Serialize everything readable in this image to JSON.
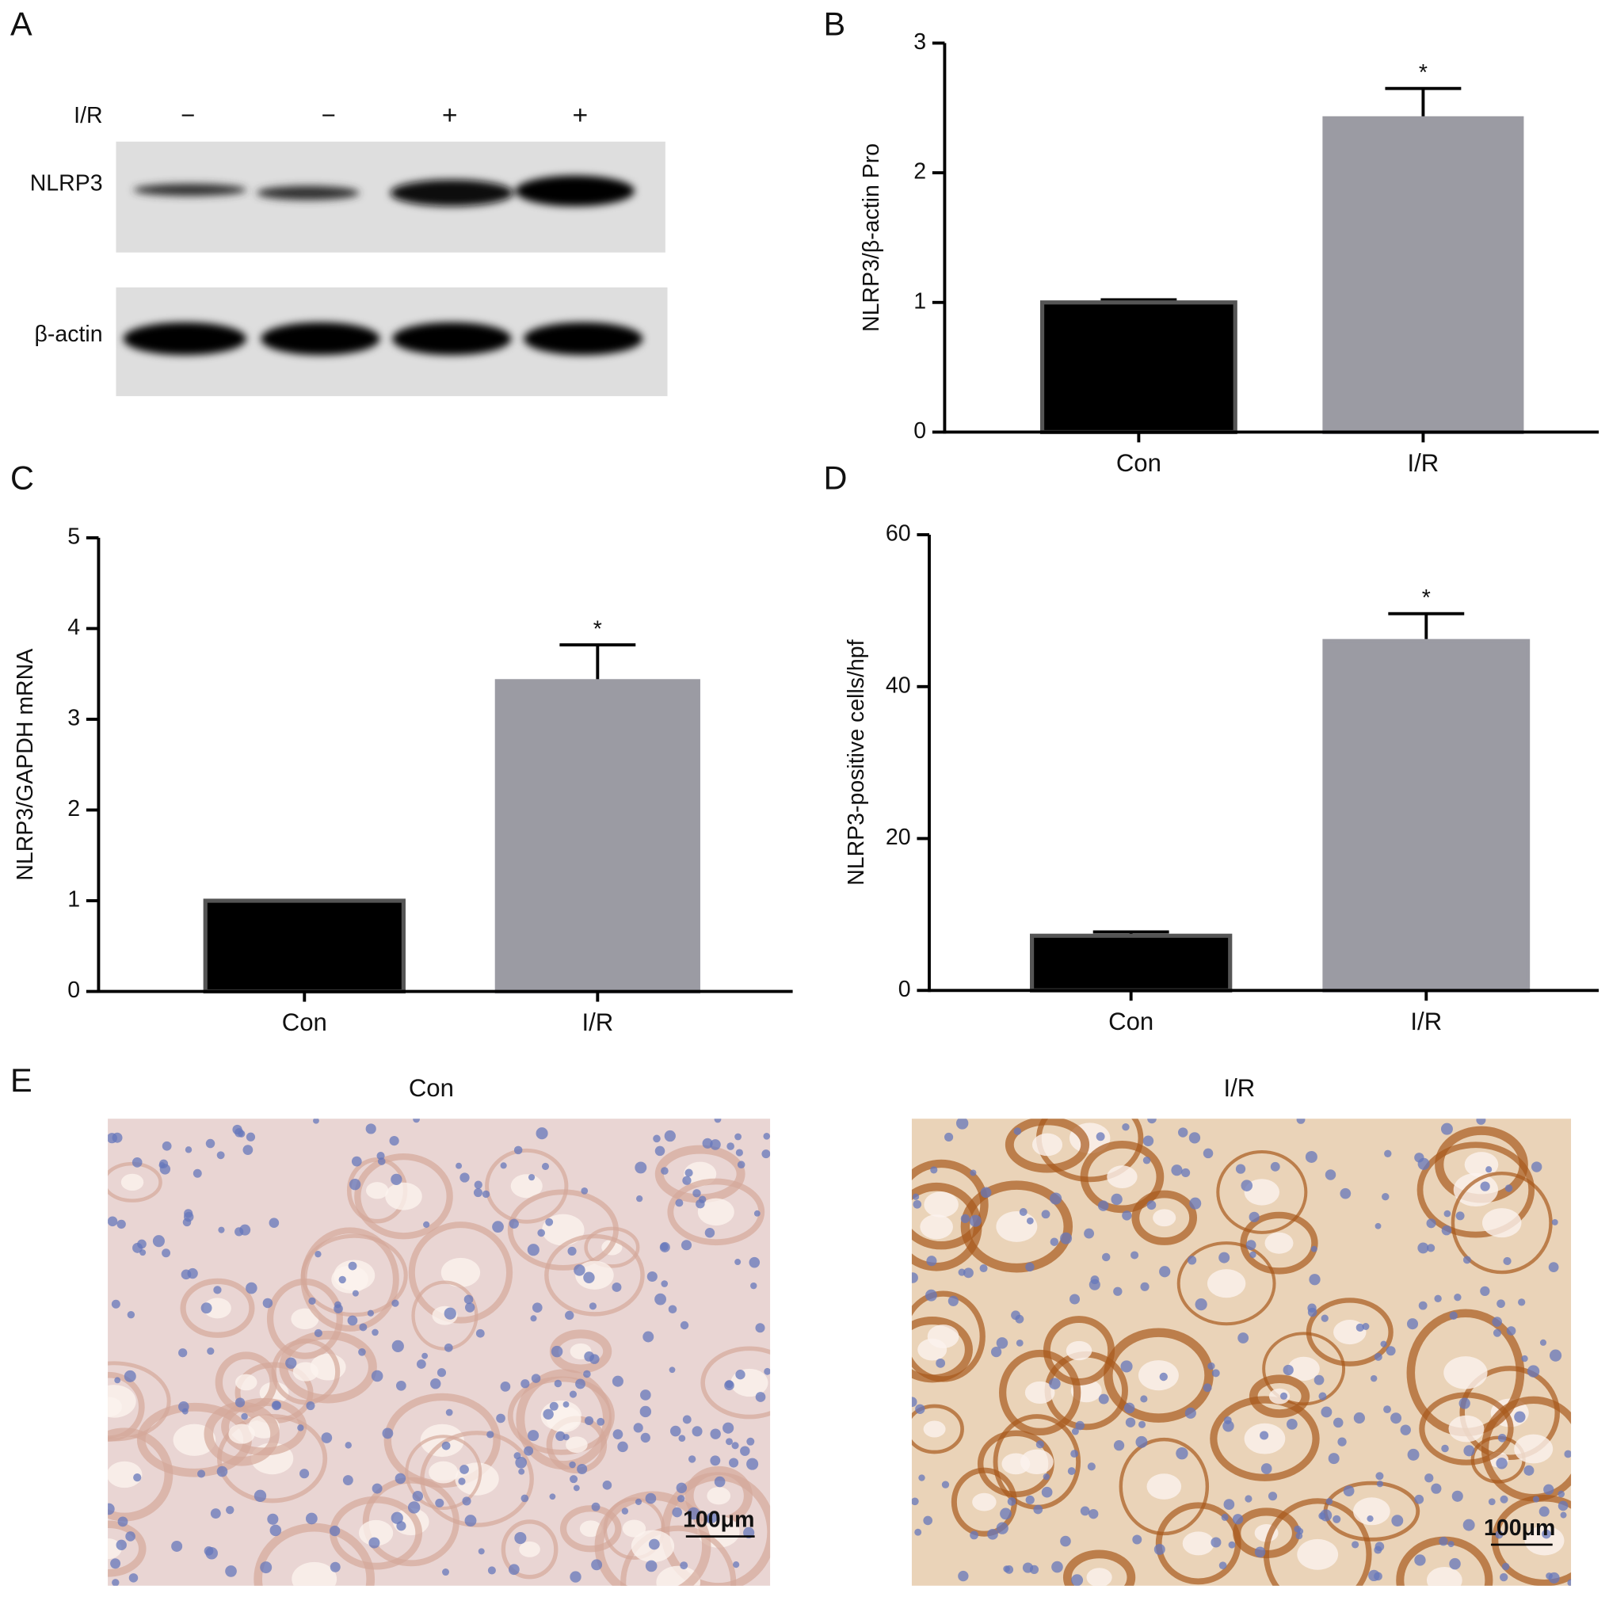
{
  "panels": [
    "A",
    "B",
    "C",
    "D",
    "E"
  ],
  "blot": {
    "condition_label": "I/R",
    "lanes": [
      "−",
      "−",
      "+",
      "+"
    ],
    "rows": [
      "NLRP3",
      "β-actin"
    ]
  },
  "histology": {
    "titles": [
      "Con",
      "I/R"
    ],
    "scale_bar": "100μm"
  },
  "chart_data": [
    {
      "type": "bar",
      "ylabel": "NLRP3/β-actin Pro",
      "categories": [
        "Con",
        "I/R"
      ],
      "values": [
        1.0,
        2.42
      ],
      "errors": [
        0.02,
        0.23
      ],
      "annotations": [
        null,
        "*"
      ],
      "colors": [
        "#000000",
        "#9b9ba3"
      ],
      "ylim": [
        0,
        3
      ],
      "yticks": [
        0,
        1,
        2,
        3
      ]
    },
    {
      "type": "bar",
      "ylabel": "NLRP3/GAPDH mRNA",
      "categories": [
        "Con",
        "I/R"
      ],
      "values": [
        1.0,
        3.42
      ],
      "errors": [
        0,
        0.4
      ],
      "annotations": [
        null,
        "*"
      ],
      "colors": [
        "#000000",
        "#9b9ba3"
      ],
      "ylim": [
        0,
        5
      ],
      "yticks": [
        0,
        1,
        2,
        3,
        4,
        5
      ]
    },
    {
      "type": "bar",
      "ylabel": "NLRP3-positive cells/hpf",
      "categories": [
        "Con",
        "I/R"
      ],
      "values": [
        7.2,
        46
      ],
      "errors": [
        0.5,
        3.6
      ],
      "annotations": [
        null,
        "*"
      ],
      "colors": [
        "#000000",
        "#9b9ba3"
      ],
      "ylim": [
        0,
        60
      ],
      "yticks": [
        0,
        20,
        40,
        60
      ]
    }
  ]
}
